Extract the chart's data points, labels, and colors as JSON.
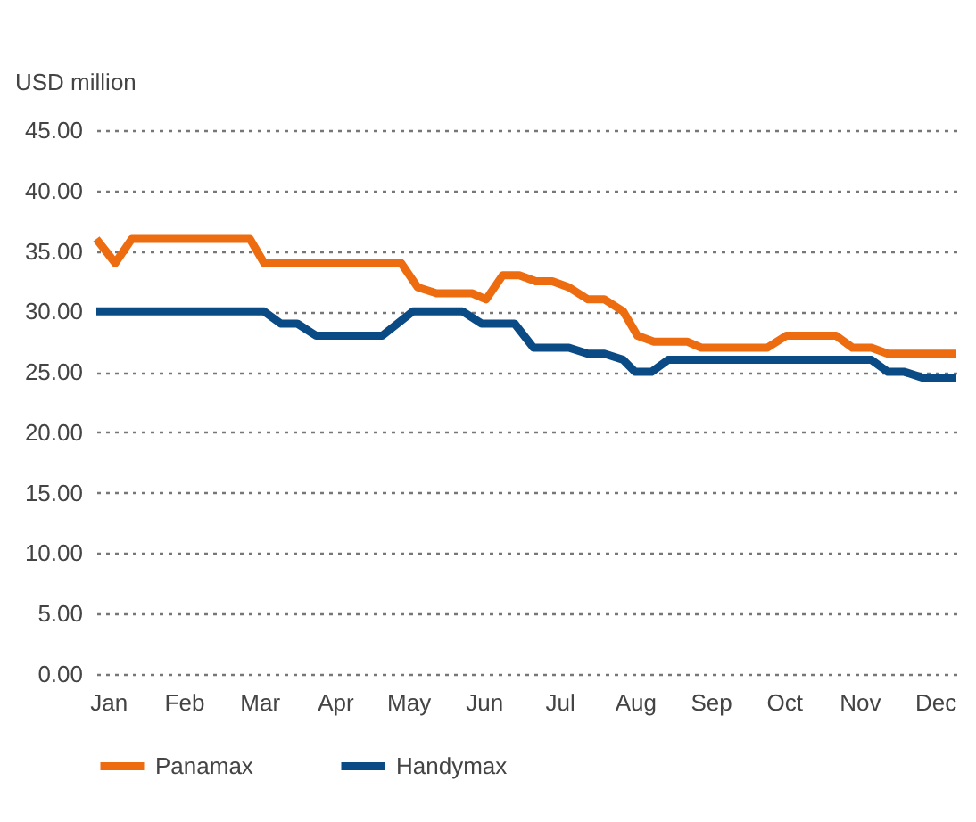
{
  "chart_data": {
    "type": "line",
    "ylabel": "USD million",
    "xlim": [
      "--01-01",
      "--12-31"
    ],
    "xticks": [
      {
        "value": "--01-06",
        "label": "Jan"
      },
      {
        "value": "--02-07",
        "label": "Feb"
      },
      {
        "value": "--03-11",
        "label": "Mar"
      },
      {
        "value": "--04-12",
        "label": "Apr"
      },
      {
        "value": "--05-13",
        "label": "May"
      },
      {
        "value": "--06-14",
        "label": "Jun"
      },
      {
        "value": "--07-16",
        "label": "Jul"
      },
      {
        "value": "--08-17",
        "label": "Aug"
      },
      {
        "value": "--09-18",
        "label": "Sep"
      },
      {
        "value": "--10-19",
        "label": "Oct"
      },
      {
        "value": "--11-20",
        "label": "Nov"
      },
      {
        "value": "--12-22",
        "label": "Dec"
      }
    ],
    "ylim": [
      0,
      45
    ],
    "yticks": [
      {
        "value": 0,
        "label": "0.00"
      },
      {
        "value": 5,
        "label": "5.00"
      },
      {
        "value": 10,
        "label": "10.00"
      },
      {
        "value": 15,
        "label": "15.00"
      },
      {
        "value": 20,
        "label": "20.00"
      },
      {
        "value": 25,
        "label": "25.00"
      },
      {
        "value": 30,
        "label": "30.00"
      },
      {
        "value": 35,
        "label": "35.00"
      },
      {
        "value": 40,
        "label": "40.00"
      },
      {
        "value": 45,
        "label": "45.00"
      }
    ],
    "grid": "y",
    "legend": "bottom",
    "line_style": "solid",
    "series": [
      {
        "name": "Panamax",
        "color": "#ee6c10",
        "x": [
          "--01-01",
          "--01-09",
          "--01-16",
          "--03-07",
          "--03-13",
          "--05-10",
          "--05-17",
          "--05-25",
          "--06-09",
          "--06-15",
          "--06-22",
          "--06-29",
          "--07-06",
          "--07-13",
          "--07-20",
          "--07-28",
          "--08-04",
          "--08-12",
          "--08-18",
          "--08-25",
          "--09-08",
          "--09-14",
          "--10-12",
          "--10-20",
          "--11-10",
          "--11-17",
          "--11-25",
          "--12-02",
          "--12-31"
        ],
        "values": [
          36,
          34,
          36,
          36,
          34,
          34,
          32,
          31.5,
          31.5,
          31,
          33,
          33,
          32.5,
          32.5,
          32,
          31,
          31,
          30,
          28,
          27.5,
          27.5,
          27,
          27,
          28,
          28,
          27,
          27,
          26.5,
          26.5
        ]
      },
      {
        "name": "Handymax",
        "color": "#0a4a85",
        "x": [
          "--01-01",
          "--03-13",
          "--03-20",
          "--03-27",
          "--04-04",
          "--05-02",
          "--05-15",
          "--06-05",
          "--06-13",
          "--06-27",
          "--07-05",
          "--07-20",
          "--07-28",
          "--08-04",
          "--08-12",
          "--08-17",
          "--08-24",
          "--08-31",
          "--11-25",
          "--12-02",
          "--12-09",
          "--12-17",
          "--12-31"
        ],
        "values": [
          30,
          30,
          29,
          29,
          28,
          28,
          30,
          30,
          29,
          29,
          27,
          27,
          26.5,
          26.5,
          26,
          25,
          25,
          26,
          26,
          25,
          25,
          24.5,
          24.5
        ]
      }
    ]
  }
}
